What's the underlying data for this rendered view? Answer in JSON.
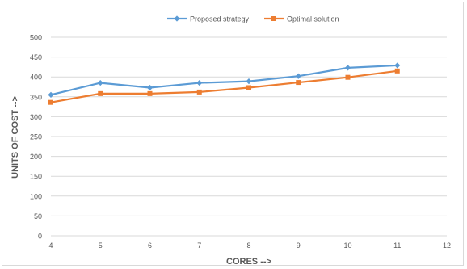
{
  "chart_data": {
    "type": "line",
    "title": "",
    "xlabel": "CORES -->",
    "ylabel": "UNITS OF COST -->",
    "x": [
      4,
      5,
      6,
      7,
      8,
      9,
      10,
      11
    ],
    "xlim": [
      4,
      12
    ],
    "xticks": [
      "4",
      "5",
      "6",
      "7",
      "8",
      "9",
      "10",
      "11",
      "12"
    ],
    "ylim": [
      0,
      500
    ],
    "yticks": [
      "0",
      "50",
      "100",
      "150",
      "200",
      "250",
      "300",
      "350",
      "400",
      "450",
      "500"
    ],
    "grid": true,
    "legend_position": "top",
    "series": [
      {
        "name": "Proposed strategy",
        "values": [
          355,
          385,
          373,
          385,
          389,
          402,
          423,
          429
        ],
        "color": "#5B9BD5",
        "marker": "diamond"
      },
      {
        "name": "Optimal solution",
        "values": [
          336,
          358,
          358,
          362,
          373,
          386,
          399,
          415
        ],
        "color": "#ED7D31",
        "marker": "square"
      }
    ]
  }
}
